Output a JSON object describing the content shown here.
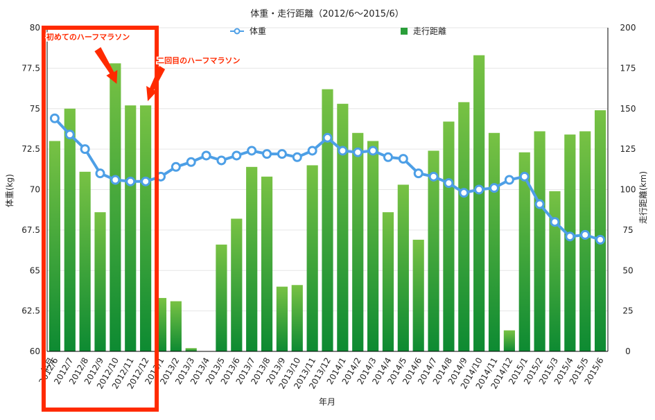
{
  "chart_data": {
    "type": "bar",
    "title": "体重・走行距離（2012/6〜2015/6）",
    "xlabel": "年月",
    "ylabel_left": "体重(kg)",
    "ylabel_right": "走行距離(km)",
    "ylim_left": [
      60,
      80
    ],
    "ylim_right": [
      0,
      200
    ],
    "yticks_left": [
      "60",
      "62.5",
      "65",
      "67.5",
      "70",
      "72.5",
      "75",
      "77.5",
      "80"
    ],
    "yticks_right": [
      "0",
      "25",
      "50",
      "75",
      "100",
      "125",
      "150",
      "175",
      "200"
    ],
    "grid": true,
    "legend_position": "top-center",
    "categories": [
      "2012/6",
      "2012/7",
      "2012/8",
      "2012/9",
      "2012/10",
      "2012/11",
      "2012/12",
      "2013/1",
      "2013/2",
      "2013/3",
      "2013/4",
      "2013/5",
      "2013/6",
      "2013/7",
      "2013/8",
      "2013/9",
      "2013/10",
      "2013/11",
      "2013/12",
      "2014/1",
      "2014/2",
      "2014/3",
      "2014/4",
      "2014/5",
      "2014/6",
      "2014/7",
      "2014/8",
      "2014/9",
      "2014/10",
      "2014/11",
      "2014/12",
      "2015/1",
      "2015/2",
      "2015/3",
      "2015/4",
      "2015/5",
      "2015/6"
    ],
    "series": [
      {
        "name": "体重",
        "type": "line",
        "axis": "left",
        "color": "#4d9fe6",
        "values": [
          74.4,
          73.4,
          72.5,
          71.0,
          70.6,
          70.5,
          70.5,
          70.8,
          71.4,
          71.7,
          72.1,
          71.8,
          72.1,
          72.4,
          72.2,
          72.2,
          72.0,
          72.4,
          73.2,
          72.4,
          72.3,
          72.4,
          72.0,
          71.9,
          71.0,
          70.8,
          70.4,
          69.8,
          70.0,
          70.1,
          70.6,
          70.8,
          69.1,
          68.0,
          67.1,
          67.2,
          66.9
        ]
      },
      {
        "name": "走行距離",
        "type": "bar",
        "axis": "right",
        "color": "#3bb33b",
        "values": [
          130,
          150,
          111,
          86,
          178,
          152,
          152,
          33,
          31,
          2,
          0,
          66,
          82,
          114,
          108,
          40,
          41,
          115,
          162,
          153,
          135,
          130,
          86,
          103,
          69,
          124,
          142,
          154,
          183,
          135,
          13,
          123,
          136,
          99,
          134,
          136,
          149
        ]
      }
    ],
    "annotations": [
      {
        "text": "初めてのハーフマラソン",
        "category": "2012/10"
      },
      {
        "text": "二回目のハーフマラソン",
        "category": "2012/12"
      }
    ],
    "highlight_box": {
      "from": "2012/6",
      "to": "2012/12",
      "color": "#ff2a00"
    },
    "corner_label": "年月"
  }
}
